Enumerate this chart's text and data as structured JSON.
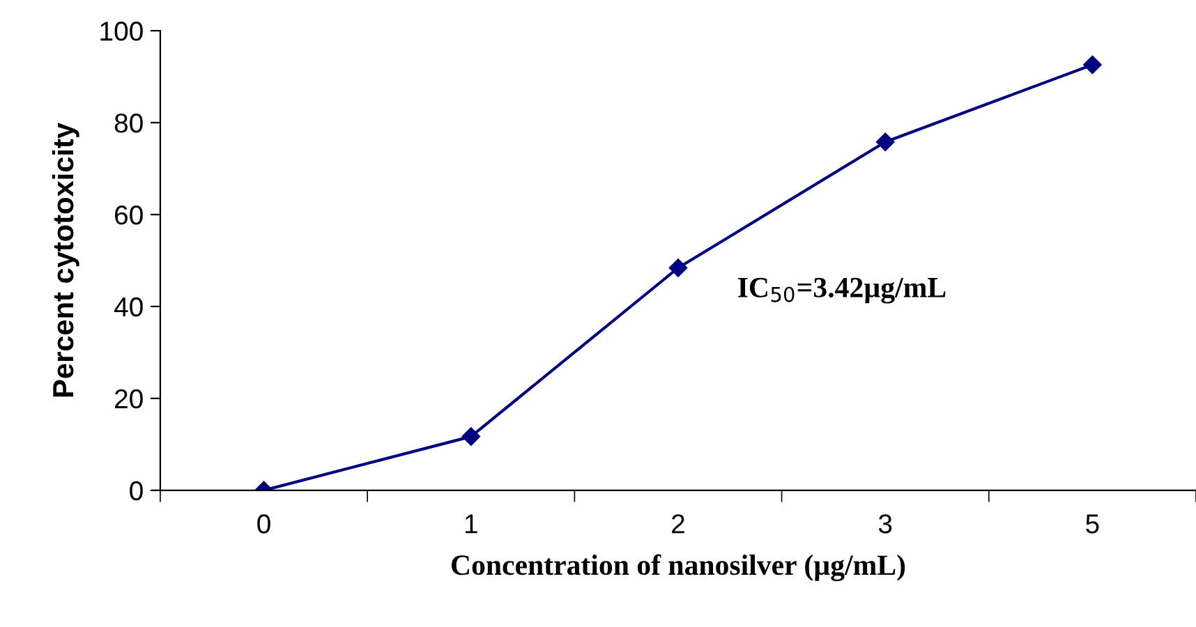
{
  "chart_data": {
    "type": "line",
    "xlabel": "Concentration of nanosilver (µg/mL)",
    "ylabel": "Percent cytotoxicity",
    "categories": [
      "0",
      "1",
      "2",
      "3",
      "5"
    ],
    "series": [
      {
        "color": "#000080",
        "values": [
          0,
          11.7,
          48.4,
          75.8,
          92.6
        ]
      }
    ],
    "ylim": [
      0,
      100
    ],
    "yticks": [
      0,
      20,
      40,
      60,
      80,
      100
    ],
    "grid": false,
    "legend": false,
    "marker": "diamond",
    "line_style": "solid",
    "annotations": [
      "IC$_{50}$=3.42µg/mL"
    ]
  }
}
